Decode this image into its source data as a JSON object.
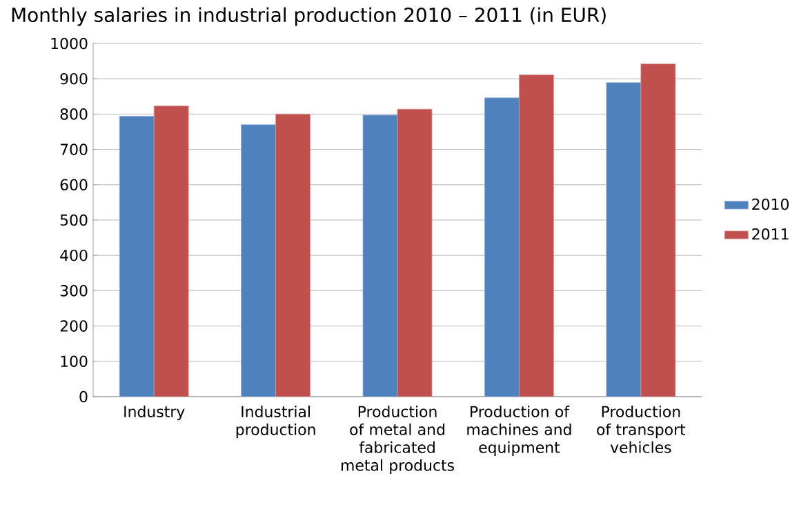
{
  "chart_data": {
    "type": "bar",
    "title": "Monthly salaries in industrial production 2010 – 2011 (in EUR)",
    "categories": [
      "Industry",
      "Industrial production",
      "Production of metal and fabricated metal products",
      "Production of machines and equipment",
      "Production of transport vehicles"
    ],
    "series": [
      {
        "name": "2010",
        "color": "#4f81bd",
        "values": [
          794,
          770,
          797,
          846,
          889
        ]
      },
      {
        "name": "2011",
        "color": "#c0504d",
        "values": [
          823,
          800,
          814,
          911,
          942
        ]
      }
    ],
    "ylim": [
      0,
      1000
    ],
    "yticks": [
      0,
      100,
      200,
      300,
      400,
      500,
      600,
      700,
      800,
      900,
      1000
    ],
    "grid": "y",
    "legend": "right"
  }
}
